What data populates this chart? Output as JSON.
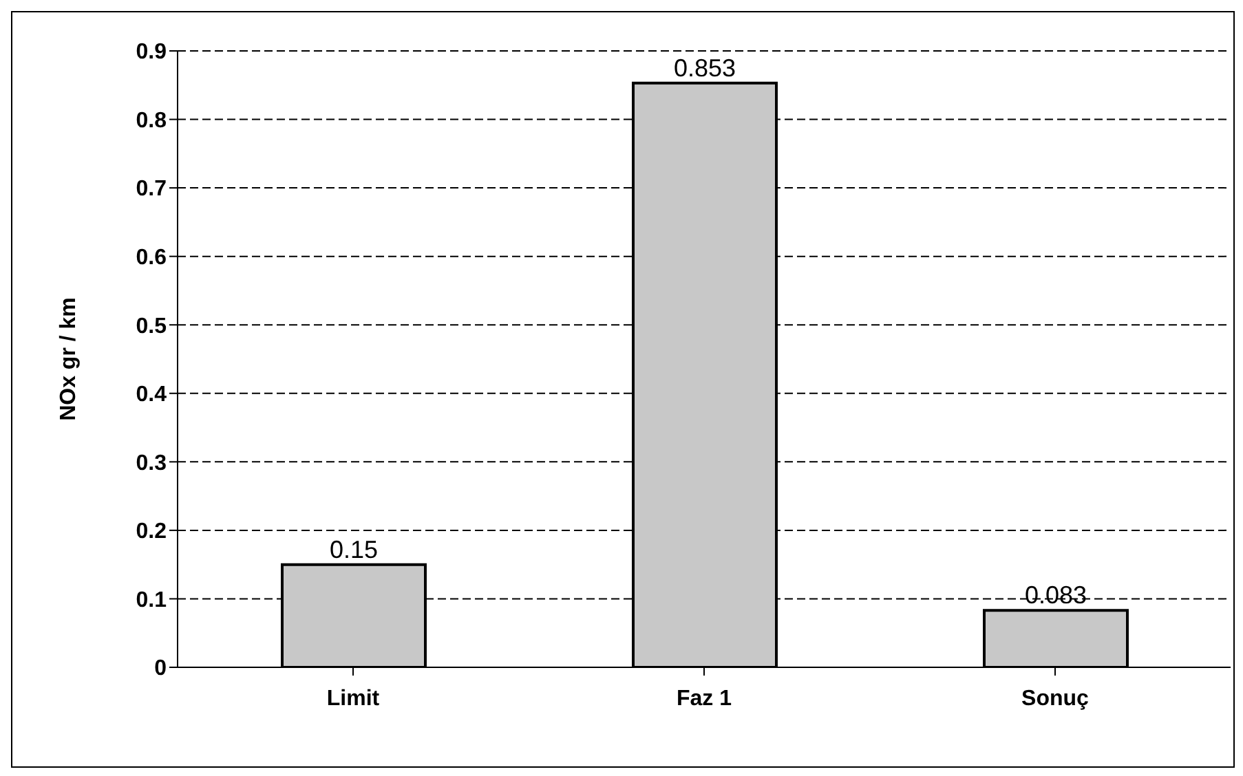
{
  "chart_data": {
    "type": "bar",
    "ylabel": "NOx gr / km",
    "categories": [
      "Limit",
      "Faz 1",
      "Sonuç"
    ],
    "values": [
      0.15,
      0.853,
      0.083
    ],
    "color": "#c8c8c8",
    "ylim": [
      0,
      0.9
    ],
    "yticks": [
      0,
      0.1,
      0.2,
      0.3,
      0.4,
      0.5,
      0.6,
      0.7,
      0.8,
      0.9
    ],
    "grid": "y",
    "data_labels": true
  }
}
